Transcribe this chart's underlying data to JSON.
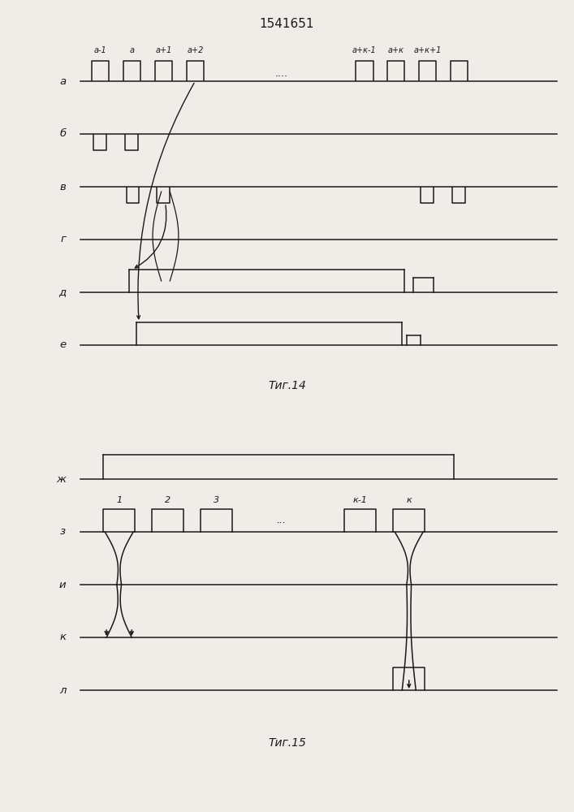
{
  "title": "1541651",
  "fig14_label": "Τиг.14",
  "fig15_label": "Τиг.15",
  "bg": "#f0ede8",
  "lc": "#1a1a1a",
  "fig14_rows": [
    "а",
    "б",
    "в",
    "г",
    "д",
    "е"
  ],
  "fig14_pulse_labels": [
    "а-1",
    "а",
    "а+1",
    "а+2",
    "а+к-1",
    "а+к",
    "а+к+1"
  ],
  "fig15_rows": [
    "ж",
    "з",
    "и",
    "к",
    "л"
  ],
  "fig15_pulse_labels": [
    "1",
    "2",
    "3",
    "к-1",
    "к"
  ]
}
